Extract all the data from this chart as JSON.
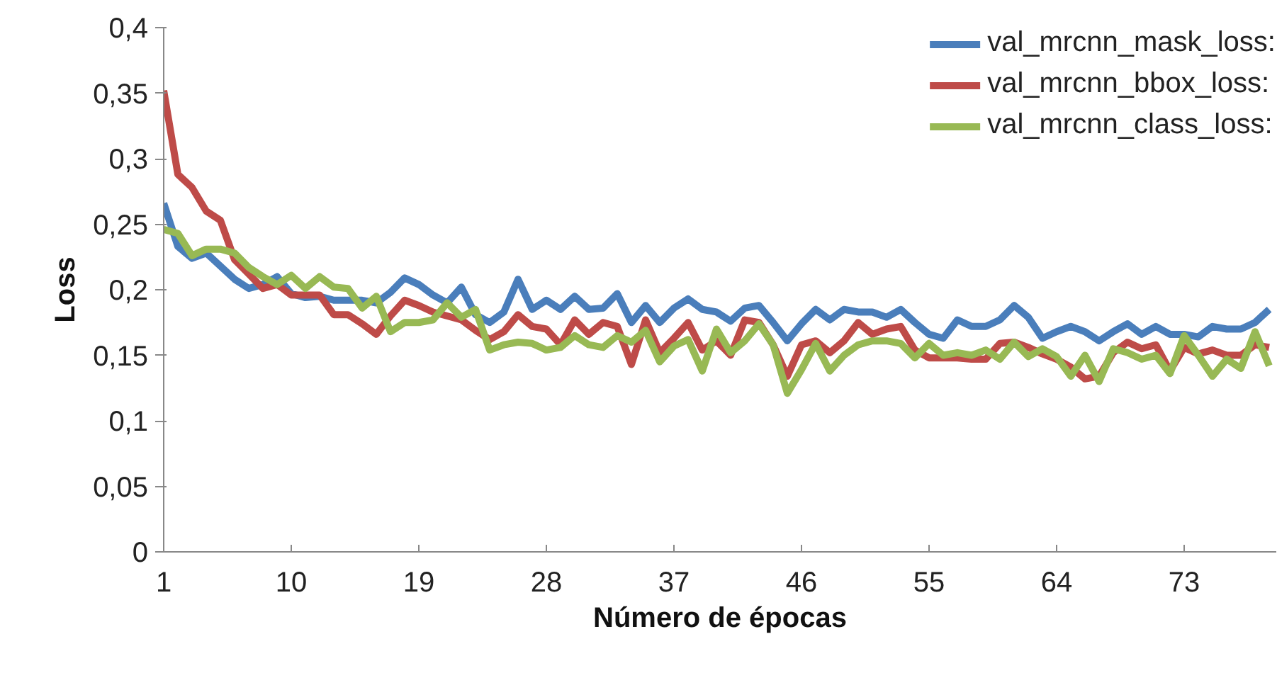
{
  "chart_data": {
    "type": "line",
    "xlabel": "Número de épocas",
    "ylabel": "Loss",
    "x": [
      1,
      2,
      3,
      4,
      5,
      6,
      7,
      8,
      9,
      10,
      11,
      12,
      13,
      14,
      15,
      16,
      17,
      18,
      19,
      20,
      21,
      22,
      23,
      24,
      25,
      26,
      27,
      28,
      29,
      30,
      31,
      32,
      33,
      34,
      35,
      36,
      37,
      38,
      39,
      40,
      41,
      42,
      43,
      44,
      45,
      46,
      47,
      48,
      49,
      50,
      51,
      52,
      53,
      54,
      55,
      56,
      57,
      58,
      59,
      60,
      61,
      62,
      63,
      64,
      65,
      66,
      67,
      68,
      69,
      70,
      71,
      72,
      73,
      74,
      75,
      76,
      77,
      78,
      79
    ],
    "xlim": [
      1,
      79.5
    ],
    "xticks": [
      1,
      10,
      19,
      28,
      37,
      46,
      55,
      64,
      73
    ],
    "ylim": [
      0,
      0.4
    ],
    "yticks": [
      0,
      {
        "value": 0.05,
        "label": "0,05"
      },
      {
        "value": 0.1,
        "label": "0,1"
      },
      {
        "value": 0.15,
        "label": "0,15"
      },
      {
        "value": 0.2,
        "label": "0,2"
      },
      {
        "value": 0.25,
        "label": "0,25"
      },
      {
        "value": 0.3,
        "label": "0,3"
      },
      {
        "value": 0.35,
        "label": "0,35"
      },
      {
        "value": 0.4,
        "label": "0,4"
      }
    ],
    "grid": false,
    "legend": "top right",
    "marker": "none",
    "line_style": "solid",
    "series": [
      {
        "name": "val_mrcnn_mask_loss:",
        "color": "#4a7ebb",
        "values": [
          0.266,
          0.233,
          0.224,
          0.228,
          0.218,
          0.208,
          0.201,
          0.204,
          0.21,
          0.197,
          0.194,
          0.195,
          0.192,
          0.192,
          0.192,
          0.19,
          0.198,
          0.209,
          0.204,
          0.196,
          0.19,
          0.202,
          0.181,
          0.175,
          0.183,
          0.208,
          0.185,
          0.192,
          0.185,
          0.195,
          0.185,
          0.186,
          0.197,
          0.175,
          0.188,
          0.175,
          0.186,
          0.193,
          0.185,
          0.183,
          0.176,
          0.186,
          0.188,
          0.175,
          0.161,
          0.174,
          0.185,
          0.177,
          0.185,
          0.183,
          0.183,
          0.179,
          0.185,
          0.175,
          0.166,
          0.163,
          0.177,
          0.172,
          0.172,
          0.177,
          0.188,
          0.179,
          0.163,
          0.168,
          0.172,
          0.168,
          0.161,
          0.168,
          0.174,
          0.166,
          0.172,
          0.166,
          0.166,
          0.164,
          0.172,
          0.17,
          0.17,
          0.175,
          0.185
        ]
      },
      {
        "name": "val_mrcnn_bbox_loss:",
        "color": "#be4b48",
        "values": [
          0.352,
          0.288,
          0.278,
          0.26,
          0.253,
          0.223,
          0.212,
          0.201,
          0.204,
          0.196,
          0.196,
          0.196,
          0.181,
          0.181,
          0.174,
          0.166,
          0.18,
          0.192,
          0.188,
          0.183,
          0.18,
          0.177,
          0.169,
          0.162,
          0.168,
          0.181,
          0.172,
          0.17,
          0.158,
          0.177,
          0.166,
          0.175,
          0.172,
          0.143,
          0.177,
          0.152,
          0.163,
          0.175,
          0.154,
          0.161,
          0.15,
          0.177,
          0.175,
          0.158,
          0.134,
          0.158,
          0.161,
          0.152,
          0.161,
          0.175,
          0.166,
          0.17,
          0.172,
          0.154,
          0.148,
          0.148,
          0.148,
          0.147,
          0.147,
          0.159,
          0.16,
          0.156,
          0.151,
          0.147,
          0.141,
          0.132,
          0.134,
          0.152,
          0.16,
          0.155,
          0.158,
          0.138,
          0.156,
          0.151,
          0.154,
          0.15,
          0.15,
          0.158,
          0.156
        ]
      },
      {
        "name": "val_mrcnn_class_loss:",
        "color": "#98b954",
        "values": [
          0.246,
          0.243,
          0.226,
          0.231,
          0.231,
          0.228,
          0.217,
          0.21,
          0.204,
          0.211,
          0.201,
          0.21,
          0.202,
          0.201,
          0.186,
          0.195,
          0.168,
          0.175,
          0.175,
          0.177,
          0.19,
          0.179,
          0.185,
          0.154,
          0.158,
          0.16,
          0.159,
          0.154,
          0.156,
          0.165,
          0.158,
          0.156,
          0.165,
          0.16,
          0.169,
          0.145,
          0.157,
          0.162,
          0.138,
          0.17,
          0.152,
          0.161,
          0.174,
          0.158,
          0.121,
          0.139,
          0.159,
          0.138,
          0.15,
          0.158,
          0.161,
          0.161,
          0.159,
          0.148,
          0.159,
          0.15,
          0.152,
          0.15,
          0.154,
          0.147,
          0.16,
          0.149,
          0.155,
          0.149,
          0.134,
          0.15,
          0.13,
          0.155,
          0.152,
          0.147,
          0.15,
          0.136,
          0.165,
          0.15,
          0.134,
          0.147,
          0.14,
          0.168,
          0.142
        ]
      }
    ]
  }
}
